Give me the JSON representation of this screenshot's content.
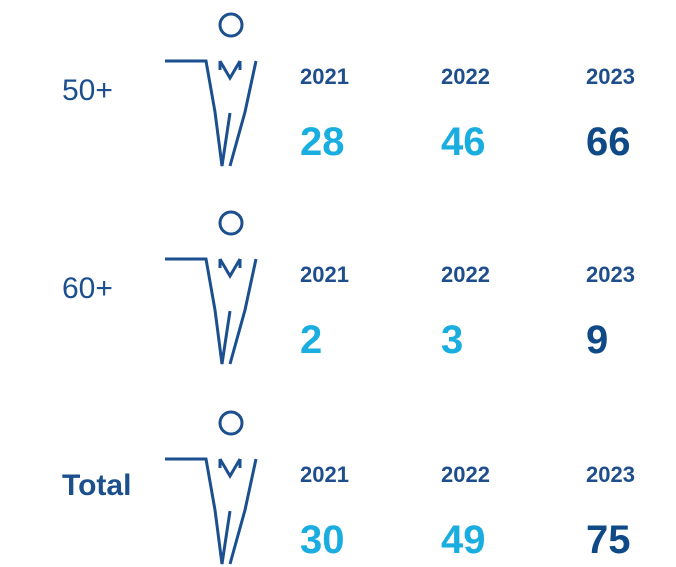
{
  "rows": [
    {
      "label": "50+",
      "years": [
        2021,
        2022,
        2023
      ],
      "values": [
        28,
        46,
        66
      ]
    },
    {
      "label": "60+",
      "years": [
        2021,
        2022,
        2023
      ],
      "values": [
        2,
        3,
        9
      ]
    },
    {
      "label": "Total",
      "years": [
        2021,
        2022,
        2023
      ],
      "values": [
        30,
        49,
        75
      ]
    }
  ]
}
